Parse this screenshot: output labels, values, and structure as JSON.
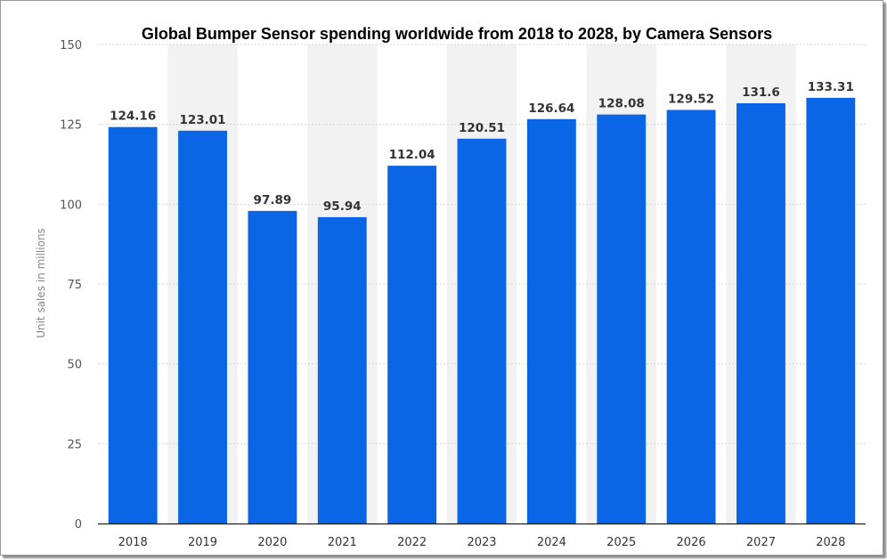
{
  "chart_data": {
    "type": "bar",
    "title": "Global Bumper Sensor spending worldwide from 2018 to 2028, by Camera Sensors",
    "ylabel": "Unit sales in millions",
    "xlabel": "",
    "categories": [
      "2018",
      "2019",
      "2020",
      "2021",
      "2022",
      "2023",
      "2024",
      "2025",
      "2026",
      "2027",
      "2028"
    ],
    "values": [
      124.16,
      123.01,
      97.89,
      95.94,
      112.04,
      120.51,
      126.64,
      128.08,
      129.52,
      131.6,
      133.31
    ],
    "value_labels": [
      "124.16",
      "123.01",
      "97.89",
      "95.94",
      "112.04",
      "120.51",
      "126.64",
      "128.08",
      "129.52",
      "131.6",
      "133.31"
    ],
    "ylim": [
      0,
      150
    ],
    "yticks": [
      "0",
      "25",
      "50",
      "75",
      "100",
      "125",
      "150"
    ],
    "grid": true,
    "legend": "none",
    "colors": {
      "bar": "#0a66e4",
      "band": "#f2f2f2",
      "grid": "#d7d7d7"
    }
  }
}
